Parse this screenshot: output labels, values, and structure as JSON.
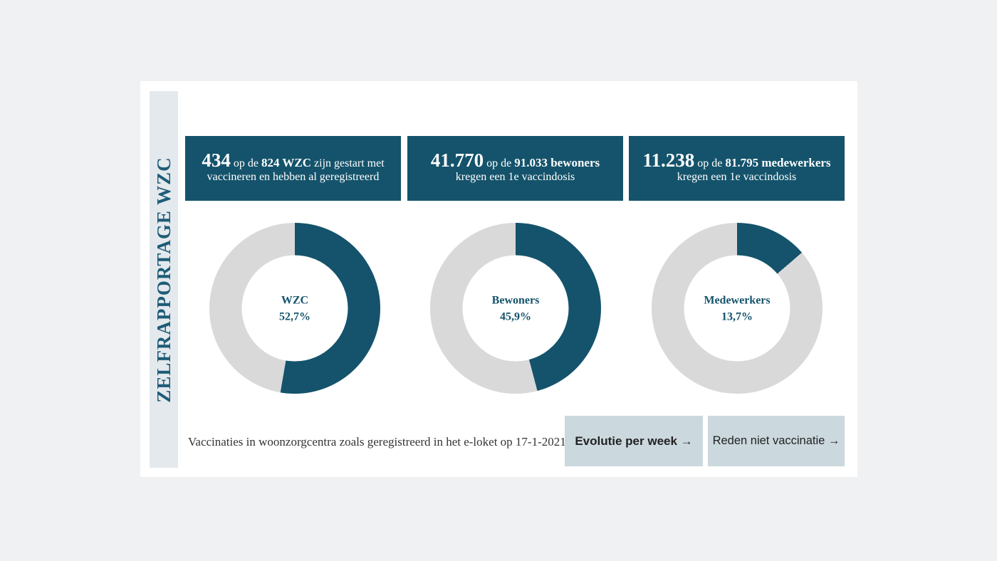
{
  "colors": {
    "page_bg": "#f0f1f2",
    "card_bg": "#ffffff",
    "sidebar_bg": "#e4e9ed",
    "sidebar_text": "#1d5c77",
    "teal": "#14536b",
    "donut_rest": "#d9d9d9",
    "stat_text": "#ffffff",
    "button_bg": "#cbd8de",
    "button_text": "#222222",
    "caption_text": "#333333",
    "donut_label": "#14536b"
  },
  "sidebar": {
    "title": "ZELFRAPPORTAGE WZC"
  },
  "stats": [
    {
      "value": "434",
      "t1": "op de",
      "b1": "824 WZC",
      "t2": "zijn gestart met vaccineren en hebben al geregistreerd"
    },
    {
      "value": "41.770",
      "t1": "op de",
      "b1": "91.033 bewoners",
      "t2": "kregen een 1e vaccindosis"
    },
    {
      "value": "11.238",
      "t1": "op de",
      "b1": "81.795 medewerkers",
      "t2": "kregen een 1e vaccindosis"
    }
  ],
  "chart_data": {
    "type": "pie",
    "variant": "donut",
    "start_angle": "12-oclock",
    "direction": "clockwise",
    "filled_color": "#14536b",
    "rest_color": "#d9d9d9",
    "charts": [
      {
        "label": "WZC",
        "pct": 52.7,
        "display": "52,7%",
        "numerator": 434,
        "denominator": 824
      },
      {
        "label": "Bewoners",
        "pct": 45.9,
        "display": "45,9%",
        "numerator": 41770,
        "denominator": 91033
      },
      {
        "label": "Medewerkers",
        "pct": 13.7,
        "display": "13,7%",
        "numerator": 11238,
        "denominator": 81795
      }
    ]
  },
  "footer": {
    "caption": "Vaccinaties in woonzorgcentra zoals geregistreerd in het e-loket op 17-1-2021",
    "buttons": [
      {
        "label": "Evolutie per week →"
      },
      {
        "label": "Reden niet vaccinatie →"
      }
    ]
  }
}
